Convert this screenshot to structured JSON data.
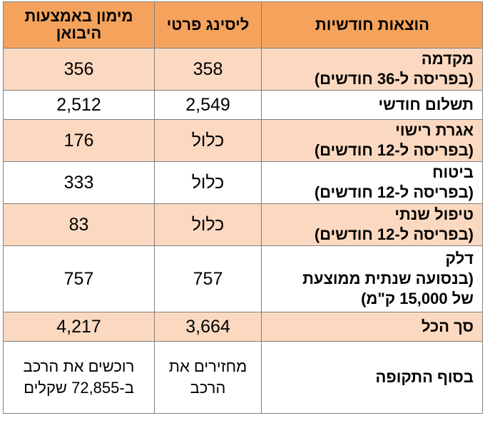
{
  "headers": {
    "label": "הוצאות חודשיות",
    "private_leasing": "ליסינג פרטי",
    "importer_financing": "מימון באמצעות היבואן"
  },
  "rows": [
    {
      "label": [
        "מקדמה",
        "(בפריסה ל-36 חודשים)"
      ],
      "private_leasing": "358",
      "importer_financing": "356"
    },
    {
      "label": [
        "תשלום חודשי"
      ],
      "private_leasing": "2,549",
      "importer_financing": "2,512"
    },
    {
      "label": [
        "אגרת רישוי",
        "(בפריסה ל-12 חודשים)"
      ],
      "private_leasing": "כלול",
      "importer_financing": "176"
    },
    {
      "label": [
        "ביטוח",
        "(בפריסה ל-12 חודשים)"
      ],
      "private_leasing": "כלול",
      "importer_financing": "333"
    },
    {
      "label": [
        "טיפול שנתי",
        "(בפריסה ל-12 חודשים)"
      ],
      "private_leasing": "כלול",
      "importer_financing": "83"
    },
    {
      "label": [
        "דלק",
        "(בנסועה שנתית ממוצעת",
        "של 15,000 ק\"מ)"
      ],
      "private_leasing": "757",
      "importer_financing": "757"
    },
    {
      "label": [
        "סך הכל"
      ],
      "private_leasing": "3,664",
      "importer_financing": "4,217"
    },
    {
      "label": [
        "בסוף התקופה"
      ],
      "private_leasing": "מחזירים את הרכב",
      "importer_financing": "רוכשים את הרכב ב-72,855 שקלים"
    }
  ],
  "colors": {
    "header_bg": "#f5a35c",
    "shaded_row_bg": "#fbd9c0",
    "border": "#7f7f7f"
  }
}
